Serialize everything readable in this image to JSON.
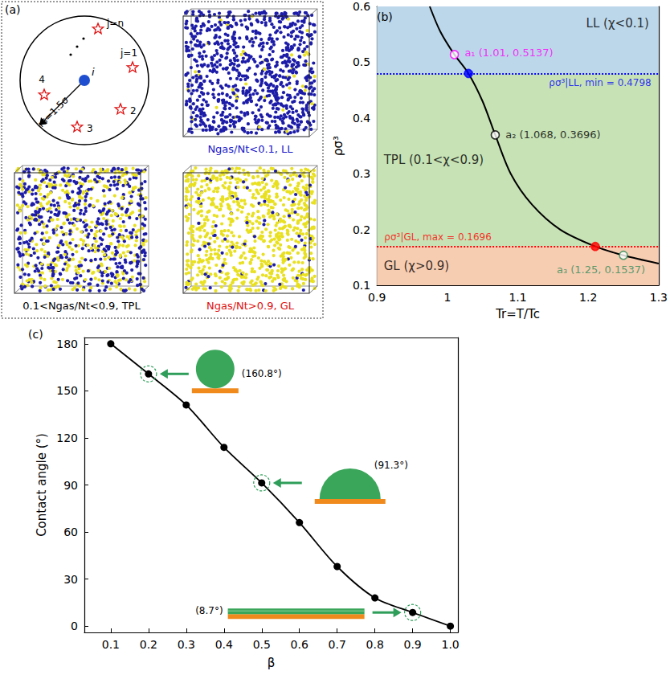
{
  "panel_a": {
    "letter": "(a)",
    "center_label": "i",
    "neighbor_labels": [
      "j=1",
      "2",
      "3",
      "4",
      "j=n"
    ],
    "radius_label": "rs=1.5σ",
    "snapshots": [
      {
        "caption": "Ngas/Nt<0.1, LL",
        "color": "#1a1acc"
      },
      {
        "caption": "0.1<Ngas/Nt<0.9, TPL",
        "color": "#000000"
      },
      {
        "caption": "Ngas/Nt>0.9, GL",
        "color": "#e01010"
      }
    ]
  },
  "chart_data": [
    {
      "letter": "(b)",
      "type": "line",
      "xlabel": "Tr=T/Tc",
      "ylabel": "ρσ³",
      "xlim": [
        0.9,
        1.3
      ],
      "xticks": [
        0.9,
        1,
        1.1,
        1.2,
        1.3
      ],
      "ylim": [
        0.1,
        0.6
      ],
      "yticks": [
        0.1,
        0.2,
        0.3,
        0.4,
        0.5,
        0.6
      ],
      "grid": false,
      "x": [
        0.975,
        0.99,
        1.01,
        1.03,
        1.05,
        1.068,
        1.09,
        1.12,
        1.16,
        1.21,
        1.25,
        1.3
      ],
      "series": [
        {
          "color": "#000000",
          "line_style": "solid",
          "values": [
            0.6,
            0.555,
            0.5137,
            0.4798,
            0.43,
            0.3696,
            0.3,
            0.245,
            0.2,
            0.1696,
            0.1537,
            0.139
          ]
        }
      ],
      "regions": [
        {
          "label": "LL (χ<0.1)",
          "range": [
            0.4798,
            0.6
          ],
          "color": "#bcd7ea"
        },
        {
          "label": "TPL (0.1<χ<0.9)",
          "range": [
            0.1696,
            0.4798
          ],
          "color": "#c7e2b5"
        },
        {
          "label": "GL (χ>0.9)",
          "range": [
            0.1,
            0.1696
          ],
          "color": "#f7cdb2"
        }
      ],
      "thresholds": [
        {
          "label": "ρσ³|LL, min = 0.4798",
          "value": 0.4798,
          "color": "#0000ff",
          "line_style": "dotted"
        },
        {
          "label": "ρσ³|GL, max = 0.1696",
          "value": 0.1696,
          "color": "#ff0000",
          "line_style": "dotted"
        }
      ],
      "points": [
        {
          "label": "a₁ (1.01, 0.5137)",
          "x": 1.01,
          "y": 0.5137,
          "color": "#ff00ff",
          "marker": "open"
        },
        {
          "x": 1.03,
          "y": 0.4798,
          "color": "#0000ff",
          "marker": "filled"
        },
        {
          "label": "a₂ (1.068, 0.3696)",
          "x": 1.068,
          "y": 0.3696,
          "color": "#000000",
          "marker": "open"
        },
        {
          "x": 1.21,
          "y": 0.1696,
          "color": "#ff0000",
          "marker": "filled"
        },
        {
          "label": "a₃ (1.25, 0.1537)",
          "x": 1.25,
          "y": 0.1537,
          "color": "#2e8b57",
          "marker": "open"
        }
      ]
    },
    {
      "letter": "(c)",
      "type": "line",
      "xlabel": "β",
      "ylabel": "Contact angle (°)",
      "xlim": [
        0.03,
        1.02
      ],
      "xticks": [
        0.1,
        0.2,
        0.3,
        0.4,
        0.5,
        0.6,
        0.7,
        0.8,
        0.9,
        {
          "value": 1,
          "label": "1.0"
        }
      ],
      "ylim": [
        -4,
        184
      ],
      "yticks": [
        0,
        30,
        60,
        90,
        120,
        150,
        180
      ],
      "grid": false,
      "x": [
        0.1,
        0.2,
        0.3,
        0.4,
        0.5,
        0.6,
        0.7,
        0.8,
        0.9,
        1.0
      ],
      "series": [
        {
          "color": "#000000",
          "marker": "circle",
          "values": [
            180,
            160.8,
            141,
            114,
            91.3,
            66,
            38,
            18,
            8.7,
            0
          ]
        }
      ],
      "annotations": [
        {
          "label": "(160.8°)",
          "x": 0.2,
          "y": 160.8
        },
        {
          "label": "(91.3°)",
          "x": 0.5,
          "y": 91.3
        },
        {
          "label": "(8.7°)",
          "x": 0.9,
          "y": 8.7
        }
      ]
    }
  ]
}
